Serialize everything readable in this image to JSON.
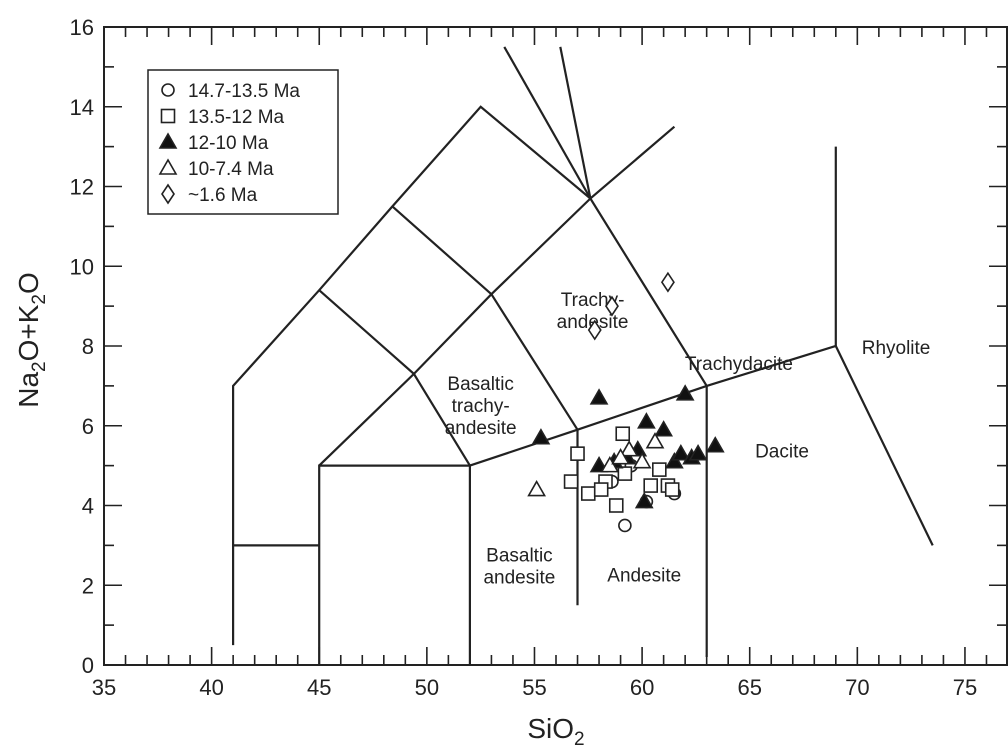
{
  "chart_data": {
    "type": "scatter",
    "xlabel": "SiO2",
    "ylabel": "Na2O+K2O",
    "xlim": [
      35,
      77
    ],
    "ylim": [
      0,
      16
    ],
    "x_ticks": [
      "35",
      "40",
      "45",
      "50",
      "55",
      "60",
      "65",
      "70",
      "75"
    ],
    "y_ticks": [
      "0",
      "2",
      "4",
      "6",
      "8",
      "10",
      "12",
      "14",
      "16"
    ],
    "grid": false,
    "legend_position": "top-left",
    "field_labels": [
      {
        "id": "trachyandesite",
        "lines": [
          "Trachy-",
          "andesite"
        ],
        "x": 57.7,
        "y": 9.0
      },
      {
        "id": "trachydacite",
        "lines": [
          "Trachydacite"
        ],
        "x": 64.5,
        "y": 7.4
      },
      {
        "id": "rhyolite",
        "lines": [
          "Rhyolite"
        ],
        "x": 71.8,
        "y": 7.8
      },
      {
        "id": "basaltic-trachyandesite",
        "lines": [
          "Basaltic",
          "trachy-",
          "andesite"
        ],
        "x": 52.5,
        "y": 6.9
      },
      {
        "id": "dacite",
        "lines": [
          "Dacite"
        ],
        "x": 66.5,
        "y": 5.2
      },
      {
        "id": "basaltic-andesite",
        "lines": [
          "Basaltic",
          "andesite"
        ],
        "x": 54.3,
        "y": 2.6
      },
      {
        "id": "andesite",
        "lines": [
          "Andesite"
        ],
        "x": 60.1,
        "y": 2.1
      }
    ],
    "boundaries": [
      [
        [
          41,
          0.5
        ],
        [
          41,
          7
        ],
        [
          45,
          9.4
        ],
        [
          48.4,
          11.5
        ],
        [
          52.5,
          14
        ],
        [
          57.6,
          11.7
        ],
        [
          63,
          7
        ],
        [
          63,
          0.2
        ]
      ],
      [
        [
          41,
          3
        ],
        [
          45,
          3
        ]
      ],
      [
        [
          45,
          0
        ],
        [
          45,
          5
        ],
        [
          52,
          5
        ],
        [
          52,
          0
        ]
      ],
      [
        [
          45,
          5
        ],
        [
          49.4,
          7.3
        ],
        [
          53,
          9.3
        ],
        [
          57.6,
          11.7
        ]
      ],
      [
        [
          45,
          9.4
        ],
        [
          49.4,
          7.3
        ],
        [
          52,
          5
        ]
      ],
      [
        [
          48.4,
          11.5
        ],
        [
          53,
          9.3
        ],
        [
          57,
          5.9
        ]
      ],
      [
        [
          52,
          5
        ],
        [
          57,
          5.9
        ],
        [
          63,
          7
        ],
        [
          69,
          8
        ],
        [
          73.5,
          3
        ]
      ],
      [
        [
          57,
          5.9
        ],
        [
          57,
          1.5
        ]
      ],
      [
        [
          69,
          8
        ],
        [
          69,
          13
        ]
      ],
      [
        [
          56.2,
          15.5
        ],
        [
          57.6,
          11.7
        ],
        [
          61.5,
          13.5
        ]
      ],
      [
        [
          53.6,
          15.5
        ],
        [
          57.6,
          11.7
        ]
      ]
    ],
    "series": [
      {
        "name": "14.7-13.5 Ma",
        "marker": "circle",
        "points": [
          [
            58.6,
            4.6
          ],
          [
            59.1,
            5.1
          ],
          [
            59.5,
            5.0
          ],
          [
            60.2,
            4.1
          ],
          [
            61.5,
            4.3
          ],
          [
            59.2,
            3.5
          ]
        ]
      },
      {
        "name": "13.5-12 Ma",
        "marker": "square",
        "points": [
          [
            57.0,
            5.3
          ],
          [
            56.7,
            4.6
          ],
          [
            57.5,
            4.3
          ],
          [
            58.3,
            4.6
          ],
          [
            58.8,
            4.0
          ],
          [
            59.2,
            4.8
          ],
          [
            60.4,
            4.5
          ],
          [
            60.8,
            4.9
          ],
          [
            61.2,
            4.5
          ],
          [
            61.4,
            4.4
          ],
          [
            59.1,
            5.8
          ],
          [
            58.1,
            4.4
          ]
        ]
      },
      {
        "name": "12-10 Ma",
        "marker": "triangle-filled",
        "points": [
          [
            55.3,
            5.7
          ],
          [
            58.0,
            6.7
          ],
          [
            60.2,
            6.1
          ],
          [
            62.0,
            6.8
          ],
          [
            58.0,
            5.0
          ],
          [
            58.7,
            5.1
          ],
          [
            59.3,
            5.2
          ],
          [
            59.8,
            5.4
          ],
          [
            61.0,
            5.9
          ],
          [
            61.5,
            5.1
          ],
          [
            61.8,
            5.3
          ],
          [
            62.3,
            5.2
          ],
          [
            62.6,
            5.3
          ],
          [
            63.4,
            5.5
          ],
          [
            60.1,
            4.1
          ]
        ]
      },
      {
        "name": "10-7.4 Ma",
        "marker": "triangle-open",
        "points": [
          [
            55.1,
            4.4
          ],
          [
            58.5,
            5.0
          ],
          [
            59.4,
            5.4
          ],
          [
            60.0,
            5.1
          ],
          [
            60.6,
            5.6
          ],
          [
            59.0,
            5.2
          ]
        ]
      },
      {
        "name": "~1.6 Ma",
        "marker": "diamond",
        "points": [
          [
            57.8,
            8.4
          ],
          [
            58.6,
            9.0
          ],
          [
            61.2,
            9.6
          ]
        ]
      }
    ]
  }
}
